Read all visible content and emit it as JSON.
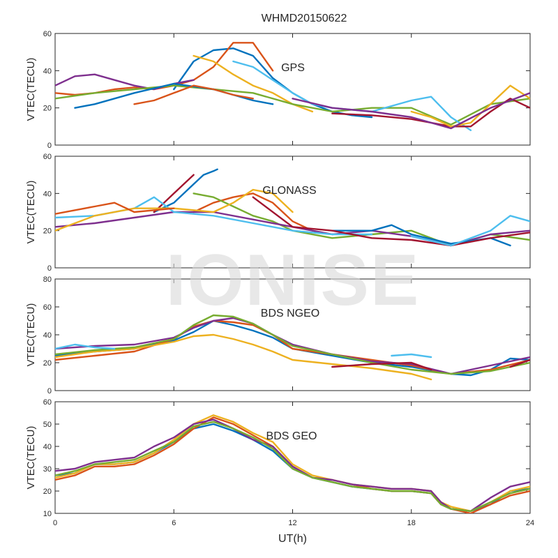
{
  "figure": {
    "title": "WHMD20150622",
    "watermark": "IONISE"
  },
  "colors": [
    "#0072BD",
    "#D95319",
    "#EDB120",
    "#7E2F8E",
    "#77AC30",
    "#4DBEEE",
    "#A2142F"
  ],
  "chart_data": [
    {
      "type": "line",
      "label": "GPS",
      "ylabel": "VTEC(TECU)",
      "xlabel": "",
      "xlim": [
        0,
        24
      ],
      "ylim": [
        0,
        60
      ],
      "xticks": [
        0,
        6,
        12,
        18,
        24
      ],
      "yticks": [
        0,
        20,
        40,
        60
      ],
      "show_x_tick_labels": false,
      "series": [
        {
          "color": 0,
          "x": [
            6,
            7,
            8,
            9,
            10,
            11,
            12,
            13,
            14,
            15,
            16
          ],
          "y": [
            30,
            45,
            51,
            52,
            48,
            36,
            28,
            22,
            18,
            16,
            15
          ]
        },
        {
          "color": 1,
          "x": [
            0,
            1,
            2,
            3,
            4,
            5,
            6,
            7,
            8,
            9,
            10,
            11
          ],
          "y": [
            28,
            27,
            28,
            30,
            31,
            30,
            32,
            35,
            42,
            55,
            55,
            40
          ]
        },
        {
          "color": 2,
          "x": [
            7,
            8,
            9,
            10,
            11,
            12,
            13
          ],
          "y": [
            48,
            45,
            38,
            32,
            28,
            22,
            18
          ]
        },
        {
          "color": 3,
          "x": [
            0,
            1,
            2,
            3,
            4,
            5,
            6,
            7
          ],
          "y": [
            32,
            37,
            38,
            35,
            32,
            30,
            33,
            35
          ]
        },
        {
          "color": 4,
          "x": [
            0,
            2,
            4,
            6,
            8,
            10,
            12,
            14,
            16,
            18,
            20,
            22,
            24
          ],
          "y": [
            25,
            28,
            30,
            32,
            30,
            28,
            22,
            18,
            20,
            20,
            11,
            22,
            25
          ]
        },
        {
          "color": 5,
          "x": [
            9,
            10,
            11,
            12,
            13,
            14,
            16,
            18,
            19,
            20,
            21
          ],
          "y": [
            45,
            42,
            35,
            28,
            22,
            20,
            18,
            24,
            26,
            15,
            8
          ]
        },
        {
          "color": 6,
          "x": [
            14,
            16,
            18,
            20,
            21,
            22,
            23,
            24
          ],
          "y": [
            17,
            16,
            14,
            10,
            10,
            18,
            25,
            20
          ]
        },
        {
          "color": 2,
          "x": [
            18,
            19,
            20,
            21,
            22,
            23,
            24
          ],
          "y": [
            18,
            15,
            10,
            12,
            22,
            32,
            25
          ]
        },
        {
          "color": 0,
          "x": [
            1,
            2,
            4,
            6,
            8,
            10,
            11
          ],
          "y": [
            20,
            22,
            28,
            33,
            30,
            24,
            22
          ]
        },
        {
          "color": 3,
          "x": [
            12,
            14,
            16,
            18,
            20,
            22,
            24
          ],
          "y": [
            25,
            20,
            18,
            15,
            9,
            20,
            28
          ]
        },
        {
          "color": 1,
          "x": [
            4,
            5,
            6,
            7,
            8,
            9,
            10
          ],
          "y": [
            22,
            24,
            28,
            32,
            30,
            27,
            25
          ]
        }
      ]
    },
    {
      "type": "line",
      "label": "GLONASS",
      "ylabel": "VTEC(TECU)",
      "xlabel": "",
      "xlim": [
        0,
        24
      ],
      "ylim": [
        0,
        60
      ],
      "xticks": [
        0,
        6,
        12,
        18,
        24
      ],
      "yticks": [
        0,
        20,
        40,
        60
      ],
      "show_x_tick_labels": false,
      "series": [
        {
          "color": 0,
          "x": [
            5,
            6,
            7,
            7.5,
            8,
            8.2
          ],
          "y": [
            30,
            35,
            45,
            50,
            52,
            53
          ]
        },
        {
          "color": 6,
          "x": [
            5,
            5.5,
            6,
            6.5,
            7
          ],
          "y": [
            30,
            35,
            40,
            45,
            50
          ]
        },
        {
          "color": 1,
          "x": [
            7,
            8,
            9,
            10,
            11,
            12,
            13,
            14
          ],
          "y": [
            30,
            35,
            38,
            40,
            35,
            25,
            20,
            18
          ]
        },
        {
          "color": 4,
          "x": [
            7,
            8,
            9,
            10,
            11,
            12,
            14,
            16,
            18,
            20,
            22,
            24
          ],
          "y": [
            40,
            38,
            33,
            28,
            25,
            20,
            16,
            18,
            20,
            12,
            18,
            15
          ]
        },
        {
          "color": 3,
          "x": [
            0,
            2,
            4,
            6,
            8,
            10,
            12,
            14,
            16,
            18,
            20,
            22,
            24
          ],
          "y": [
            22,
            24,
            27,
            30,
            30,
            26,
            22,
            18,
            20,
            17,
            12,
            18,
            20
          ]
        },
        {
          "color": 5,
          "x": [
            0,
            2,
            4,
            5,
            6,
            8,
            10,
            12,
            14,
            16
          ],
          "y": [
            27,
            28,
            32,
            38,
            30,
            28,
            24,
            20,
            18,
            18
          ]
        },
        {
          "color": 2,
          "x": [
            0,
            2,
            4,
            6,
            8,
            9,
            10,
            11,
            12
          ],
          "y": [
            20,
            28,
            32,
            32,
            30,
            35,
            42,
            40,
            30
          ]
        },
        {
          "color": 0,
          "x": [
            14,
            16,
            17,
            18,
            20,
            22,
            23
          ],
          "y": [
            20,
            20,
            23,
            18,
            13,
            16,
            12
          ]
        },
        {
          "color": 1,
          "x": [
            0,
            2,
            3,
            4,
            6
          ],
          "y": [
            29,
            33,
            35,
            30,
            32
          ]
        },
        {
          "color": 6,
          "x": [
            10,
            12,
            14,
            16,
            18,
            20,
            22,
            24
          ],
          "y": [
            38,
            22,
            20,
            16,
            15,
            12,
            16,
            19
          ]
        },
        {
          "color": 5,
          "x": [
            18,
            20,
            22,
            23,
            24
          ],
          "y": [
            17,
            12,
            20,
            28,
            25
          ]
        }
      ]
    },
    {
      "type": "line",
      "label": "BDS NGEO",
      "ylabel": "VTEC(TECU)",
      "xlabel": "",
      "xlim": [
        0,
        24
      ],
      "ylim": [
        0,
        80
      ],
      "xticks": [
        0,
        6,
        12,
        18,
        24
      ],
      "yticks": [
        0,
        20,
        40,
        60,
        80
      ],
      "show_x_tick_labels": false,
      "series": [
        {
          "color": 0,
          "x": [
            0,
            2,
            4,
            6,
            7,
            8,
            9,
            10,
            11,
            12,
            14,
            16,
            18,
            20,
            21,
            22,
            23,
            24
          ],
          "y": [
            25,
            28,
            30,
            36,
            42,
            50,
            47,
            43,
            38,
            30,
            25,
            20,
            17,
            12,
            11,
            15,
            23,
            22
          ]
        },
        {
          "color": 1,
          "x": [
            0,
            2,
            4,
            6,
            7,
            8,
            9,
            10,
            11,
            12,
            14,
            16,
            18,
            20,
            22,
            24
          ],
          "y": [
            22,
            25,
            28,
            37,
            46,
            50,
            49,
            47,
            40,
            30,
            26,
            22,
            18,
            12,
            15,
            22
          ]
        },
        {
          "color": 2,
          "x": [
            0,
            2,
            4,
            6,
            7,
            8,
            9,
            10,
            11,
            12,
            14,
            16,
            18,
            19
          ],
          "y": [
            24,
            28,
            30,
            35,
            39,
            40,
            37,
            33,
            28,
            22,
            19,
            16,
            12,
            8
          ]
        },
        {
          "color": 3,
          "x": [
            0,
            2,
            4,
            6,
            7,
            8,
            9,
            10,
            11,
            12,
            14,
            16,
            18,
            20,
            22,
            24
          ],
          "y": [
            30,
            32,
            33,
            38,
            45,
            50,
            52,
            48,
            40,
            33,
            26,
            21,
            19,
            12,
            18,
            24
          ]
        },
        {
          "color": 4,
          "x": [
            0,
            2,
            4,
            6,
            7,
            8,
            9,
            10,
            11,
            12,
            14,
            16,
            18,
            20,
            22,
            24
          ],
          "y": [
            26,
            29,
            31,
            37,
            47,
            54,
            53,
            48,
            40,
            32,
            26,
            20,
            15,
            12,
            14,
            20
          ]
        },
        {
          "color": 5,
          "x": [
            0,
            1,
            2,
            3
          ],
          "y": [
            30,
            33,
            31,
            30
          ]
        },
        {
          "color": 5,
          "x": [
            17,
            18,
            19
          ],
          "y": [
            25,
            26,
            24
          ]
        },
        {
          "color": 6,
          "x": [
            14,
            16,
            18,
            19
          ],
          "y": [
            17,
            19,
            20,
            15
          ]
        },
        {
          "color": 6,
          "x": [
            23,
            24
          ],
          "y": [
            17,
            22
          ]
        }
      ]
    },
    {
      "type": "line",
      "label": "BDS GEO",
      "ylabel": "VTEC(TECU)",
      "xlabel": "UT(h)",
      "xlim": [
        0,
        24
      ],
      "ylim": [
        10,
        60
      ],
      "xticks": [
        0,
        6,
        12,
        18,
        24
      ],
      "yticks": [
        10,
        20,
        30,
        40,
        50,
        60
      ],
      "show_x_tick_labels": true,
      "series": [
        {
          "color": 0,
          "x": [
            0,
            1,
            2,
            3,
            4,
            5,
            6,
            7,
            8,
            9,
            10,
            11,
            12,
            13,
            14,
            15,
            16,
            17,
            18,
            19,
            19.5,
            20,
            21,
            22,
            23,
            24
          ],
          "y": [
            27,
            28,
            32,
            32,
            33,
            37,
            42,
            48,
            50,
            47,
            43,
            38,
            30,
            26,
            24,
            22,
            21,
            20,
            20,
            19,
            14,
            12,
            11,
            14,
            20,
            21
          ]
        },
        {
          "color": 1,
          "x": [
            0,
            1,
            2,
            3,
            4,
            5,
            6,
            7,
            8,
            9,
            10,
            11,
            12,
            13,
            14,
            15,
            16,
            17,
            18,
            19,
            19.5,
            20,
            21,
            22,
            23,
            24
          ],
          "y": [
            25,
            27,
            31,
            31,
            32,
            36,
            41,
            48,
            53,
            50,
            45,
            40,
            31,
            26,
            25,
            23,
            21,
            20,
            20,
            19,
            14,
            12,
            10,
            14,
            18,
            20
          ]
        },
        {
          "color": 2,
          "x": [
            0,
            1,
            2,
            3,
            4,
            5,
            6,
            7,
            8,
            9,
            10,
            11,
            12,
            13,
            14,
            15,
            16,
            17,
            18,
            19,
            19.5,
            20,
            21,
            22,
            23,
            24
          ],
          "y": [
            26,
            28,
            32,
            32,
            33,
            37,
            43,
            50,
            54,
            51,
            46,
            42,
            32,
            27,
            25,
            23,
            22,
            21,
            21,
            20,
            15,
            13,
            11,
            15,
            20,
            22
          ]
        },
        {
          "color": 3,
          "x": [
            0,
            1,
            2,
            3,
            4,
            5,
            6,
            7,
            8,
            9,
            10,
            11,
            12,
            13,
            14,
            15,
            16,
            17,
            18,
            19,
            19.5,
            20,
            21,
            22,
            23,
            24
          ],
          "y": [
            29,
            30,
            33,
            34,
            35,
            40,
            44,
            50,
            52,
            48,
            43,
            40,
            31,
            26,
            25,
            23,
            22,
            21,
            21,
            20,
            15,
            12,
            11,
            17,
            22,
            24
          ]
        },
        {
          "color": 4,
          "x": [
            0,
            1,
            2,
            3,
            4,
            5,
            6,
            7,
            8,
            9,
            10,
            11,
            12,
            13,
            14,
            15,
            16,
            17,
            18,
            19,
            19.5,
            20,
            21,
            22,
            23,
            24
          ],
          "y": [
            27,
            29,
            32,
            33,
            34,
            38,
            42,
            49,
            51,
            48,
            44,
            39,
            30,
            26,
            24,
            22,
            21,
            20,
            20,
            19,
            14,
            12,
            11,
            15,
            19,
            21
          ]
        }
      ]
    }
  ]
}
